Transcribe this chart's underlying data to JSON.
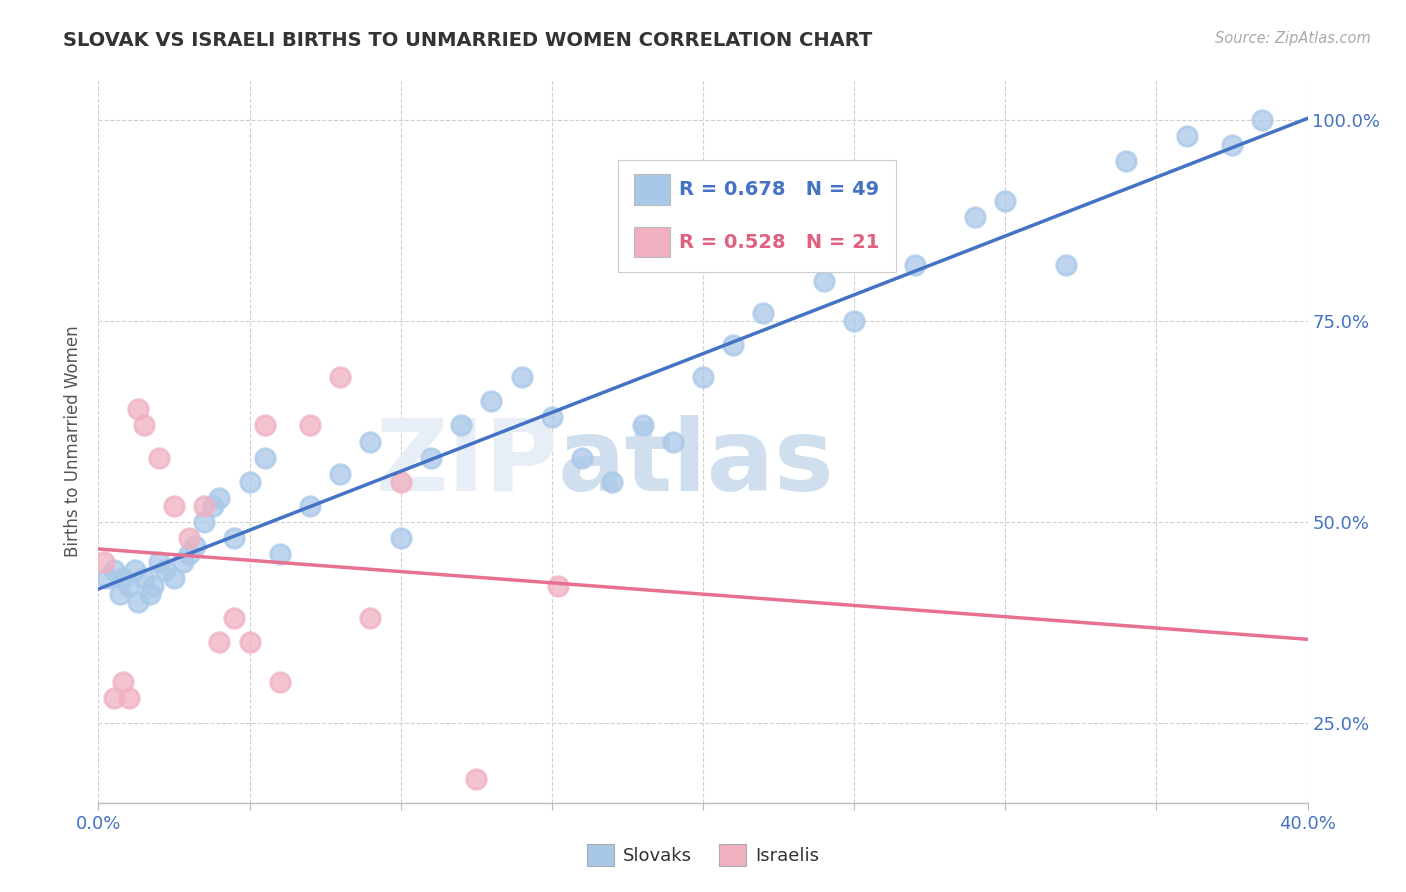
{
  "title": "SLOVAK VS ISRAELI BIRTHS TO UNMARRIED WOMEN CORRELATION CHART",
  "source": "Source: ZipAtlas.com",
  "ylabel_label": "Births to Unmarried Women",
  "legend_blue_r": "R = 0.678",
  "legend_blue_n": "N = 49",
  "legend_pink_r": "R = 0.528",
  "legend_pink_n": "N = 21",
  "legend_label_blue": "Slovaks",
  "legend_label_pink": "Israelis",
  "blue_color": "#a8c8e8",
  "pink_color": "#f0b0c0",
  "blue_line_color": "#4472c4",
  "pink_line_color": "#e87090",
  "background_color": "#ffffff",
  "xlim": [
    0.0,
    40.0
  ],
  "ylim": [
    15.0,
    105.0
  ],
  "blue_scatter_x": [
    0.3,
    0.5,
    0.7,
    0.8,
    1.0,
    1.2,
    1.3,
    1.5,
    1.7,
    1.8,
    2.0,
    2.2,
    2.5,
    2.8,
    3.0,
    3.2,
    3.5,
    3.8,
    4.0,
    4.5,
    5.0,
    5.5,
    6.0,
    7.0,
    8.0,
    9.0,
    10.0,
    11.0,
    12.0,
    13.0,
    14.0,
    15.0,
    16.0,
    17.0,
    18.0,
    19.0,
    20.0,
    21.0,
    22.0,
    24.0,
    25.0,
    27.0,
    29.0,
    30.0,
    32.0,
    34.0,
    36.0,
    37.5,
    38.5
  ],
  "blue_scatter_y": [
    43.0,
    44.0,
    41.0,
    43.0,
    42.0,
    44.0,
    40.0,
    43.0,
    41.0,
    42.0,
    45.0,
    44.0,
    43.0,
    45.0,
    46.0,
    47.0,
    50.0,
    52.0,
    53.0,
    48.0,
    55.0,
    58.0,
    46.0,
    52.0,
    56.0,
    60.0,
    48.0,
    58.0,
    62.0,
    65.0,
    68.0,
    63.0,
    58.0,
    55.0,
    62.0,
    60.0,
    68.0,
    72.0,
    76.0,
    80.0,
    75.0,
    82.0,
    88.0,
    90.0,
    82.0,
    95.0,
    98.0,
    97.0,
    100.0
  ],
  "pink_scatter_x": [
    0.2,
    0.5,
    0.8,
    1.0,
    1.3,
    1.5,
    2.0,
    2.5,
    3.0,
    3.5,
    4.0,
    4.5,
    5.0,
    5.5,
    6.0,
    7.0,
    8.0,
    9.0,
    10.0,
    12.5,
    15.2
  ],
  "pink_scatter_y": [
    45.0,
    28.0,
    30.0,
    28.0,
    64.0,
    62.0,
    58.0,
    52.0,
    48.0,
    52.0,
    35.0,
    38.0,
    35.0,
    62.0,
    30.0,
    62.0,
    68.0,
    38.0,
    55.0,
    18.0,
    42.0
  ]
}
